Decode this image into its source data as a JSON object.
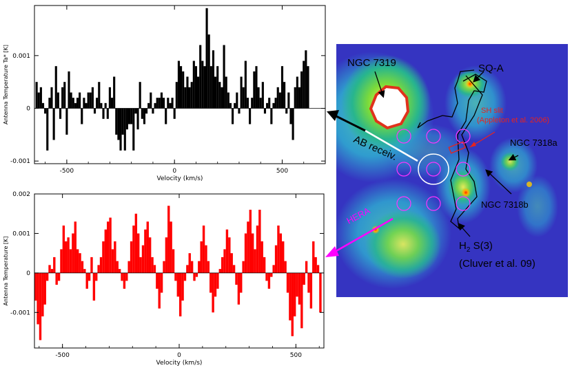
{
  "chart_data": [
    {
      "type": "bar",
      "xlabel": "Velocity (km/s)",
      "ylabel": "Antenna Temperature Ta* [K]",
      "xlim": [
        -650,
        700
      ],
      "ylim": [
        -0.00105,
        0.00195
      ],
      "xticks": [
        -500,
        0,
        500
      ],
      "yticks": [
        -0.001,
        0,
        0.001
      ],
      "ytick_labels": [
        "-0.001",
        "0",
        "0.001"
      ],
      "bar_width": 10,
      "bar_color": "#000000",
      "x_start": -640,
      "values": [
        0.0005,
        0.0003,
        0.0004,
        0.0001,
        -0.0001,
        -0.0008,
        0.0002,
        0.0004,
        -0.0006,
        0.0008,
        0.0003,
        -0.0002,
        0.0004,
        0.0005,
        -0.0005,
        0.0007,
        0.0003,
        0.0002,
        0.0001,
        0.0002,
        0.0003,
        -0.0003,
        0.0002,
        0.0001,
        0.0003,
        0.0003,
        0.0004,
        -0.0001,
        0.0002,
        0.0005,
        0.0001,
        -0.0002,
        0.0001,
        -0.0002,
        0.0004,
        0.0002,
        0.0006,
        -0.0005,
        -0.0006,
        -0.0008,
        -0.0005,
        -0.0008,
        -0.0004,
        -0.0003,
        -0.0003,
        -0.0008,
        -0.0001,
        -0.0004,
        0.0005,
        -0.0002,
        -0.0003,
        -0.0001,
        0.0001,
        0.0003,
        -0.0001,
        0.0001,
        0.0002,
        0.0002,
        0.0003,
        0.0002,
        -0.0003,
        0.0002,
        0.0001,
        0.0002,
        -0.0002,
        0.0005,
        0.0009,
        0.0008,
        0.0007,
        0.0004,
        0.0006,
        0.0004,
        0.0005,
        0.0009,
        0.0008,
        0.0006,
        0.0012,
        0.0009,
        0.0008,
        0.0019,
        0.0014,
        0.0008,
        0.0011,
        0.0006,
        0.0008,
        0.0005,
        0.0004,
        0.0012,
        0.0006,
        0.0003,
        0.0001,
        -0.0003,
        0.0001,
        0.0003,
        -0.0001,
        0.0006,
        0.0004,
        0.0009,
        0.0002,
        -0.0003,
        0.0002,
        0.0007,
        0.0008,
        0.0004,
        0.0002,
        0.0005,
        -0.0001,
        0.0001,
        0.0002,
        -0.0003,
        0.0001,
        0.0002,
        0.0004,
        0.0003,
        0.0008,
        0.0005,
        -0.0001,
        0.0003,
        -0.0003,
        -0.0006,
        0.0004,
        0.0006,
        0.0004,
        0.0007,
        0.0009,
        0.0011,
        0.0008
      ]
    },
    {
      "type": "bar",
      "xlabel": "Velocity (km/s)",
      "ylabel": "Antenna Temperature [K]",
      "xlim": [
        -620,
        620
      ],
      "ylim": [
        -0.0019,
        0.002
      ],
      "xticks": [
        -500,
        0,
        500
      ],
      "yticks": [
        -0.001,
        0,
        0.001,
        0.002
      ],
      "ytick_labels": [
        "-0.001",
        "0",
        "0.001",
        "0.002"
      ],
      "bar_width": 10,
      "bar_color": "#ff0000",
      "x_start": -615,
      "values": [
        -0.0007,
        -0.0013,
        -0.0017,
        -0.0011,
        -0.0008,
        -0.0002,
        0.0002,
        0.0001,
        0.0004,
        -0.0003,
        -0.0002,
        0.0006,
        0.0012,
        0.0008,
        0.0009,
        0.0006,
        0.001,
        0.0013,
        0.0006,
        0.0005,
        0.0003,
        0.0001,
        -0.0004,
        -0.0002,
        0.0004,
        -0.0007,
        -0.0002,
        0.0002,
        0.0004,
        0.0008,
        0.0011,
        0.0013,
        0.0014,
        0.0006,
        0.0008,
        0.0003,
        0.0001,
        -0.0002,
        -0.0004,
        -0.0002,
        0.0003,
        0.0008,
        0.0012,
        0.0015,
        0.001,
        0.0004,
        0.0007,
        0.0011,
        0.0013,
        0.0009,
        0.0004,
        0.0002,
        -0.0004,
        -0.0009,
        -0.0005,
        0.0003,
        0.0009,
        0.0017,
        0.0013,
        0.0006,
        -0.0002,
        -0.0006,
        -0.0011,
        -0.0007,
        -0.0002,
        0.0002,
        0.0005,
        0.0003,
        -0.0002,
        -0.0001,
        0.0003,
        0.0008,
        0.0012,
        0.0007,
        0.0003,
        -0.0005,
        -0.001,
        -0.0006,
        -0.0004,
        0.0001,
        0.0004,
        0.0006,
        0.0011,
        0.0009,
        0.0005,
        0.0002,
        -0.0003,
        -0.0008,
        -0.0005,
        0.0003,
        0.001,
        0.0013,
        0.0016,
        0.001,
        0.0006,
        0.0012,
        0.0016,
        0.0008,
        0.0004,
        -0.0002,
        -0.0004,
        -0.0001,
        0.0002,
        0.0007,
        0.0012,
        0.001,
        0.0008,
        0.0003,
        -0.0005,
        -0.0012,
        -0.0016,
        -0.0011,
        -0.0006,
        -0.0008,
        -0.0014,
        -0.0003,
        0.0003,
        -0.0005,
        -0.0009,
        0.0008,
        0.0004,
        0.0002,
        -0.001
      ]
    }
  ],
  "image": {
    "labels": {
      "ngc7319": "NGC 7319",
      "sqa": "SQ-A",
      "sh_line1": "SH slit",
      "sh_line2": "(Appleton et al. 2006)",
      "ngc7318a": "NGC 7318a",
      "ab_receiv": "AB receiv.",
      "ngc7318b": "NGC 7318b",
      "hera": "HERA",
      "h2_main": "H",
      "h2_sub": "2",
      "h2_rest": " S(3)",
      "cluver": "(Cluver et al. 09)"
    },
    "colors": {
      "label": "#000000",
      "sh": "#e8231e",
      "hera": "#ff00ff",
      "ab": "#ffffff",
      "beam_hera": "#ff33ff",
      "beam_ab": "#ffffff"
    }
  }
}
